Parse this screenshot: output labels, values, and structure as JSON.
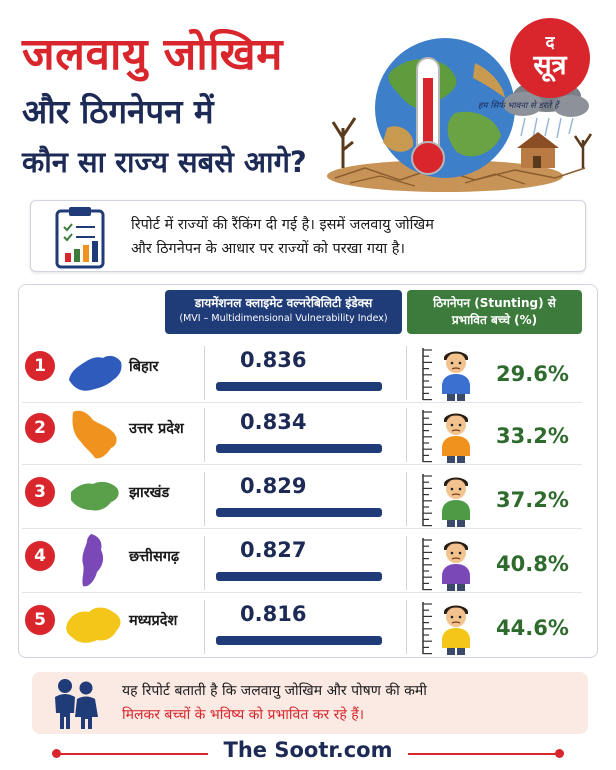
{
  "header": {
    "title_line1": "जलवायु जोखिम",
    "title_line2": "और ठिगनेपन में",
    "title_line3": "कौन सा राज्य सबसे आगे?",
    "logo_small": "द",
    "logo_big": "सूत्र",
    "tagline": "हम सिर्फ भावना से डरते हैं"
  },
  "intro": {
    "line1": "रिपोर्ट में राज्यों की रैंकिंग दी गई है। इसमें जलवायु जोखिम",
    "line2": "और ठिगनेपन के आधार पर राज्यों को परखा गया है।",
    "icon": "clipboard-chart-icon"
  },
  "columns": {
    "mvi_line1": "डायमेंशनल क्लाइमेट वल्नरेबिलिटी इंडेक्स",
    "mvi_line2": "(MVI – Multidimensional Vulnerability Index)",
    "stunting_line1": "ठिगनेपन (Stunting) से",
    "stunting_line2": "प्रभावित बच्चे (%)"
  },
  "states": [
    {
      "rank": "1",
      "name": "बिहार",
      "mvi": "0.836",
      "mvi_fraction": 1.0,
      "stunting": "29.6%",
      "map_color": "#2f5bbd",
      "shirt_color": "#3b6fd0"
    },
    {
      "rank": "2",
      "name": "उत्तर प्रदेश",
      "mvi": "0.834",
      "mvi_fraction": 1.0,
      "stunting": "33.2%",
      "map_color": "#f0931e",
      "shirt_color": "#f0931e"
    },
    {
      "rank": "3",
      "name": "झारखंड",
      "mvi": "0.829",
      "mvi_fraction": 1.0,
      "stunting": "37.2%",
      "map_color": "#5aa04b",
      "shirt_color": "#4f9a45"
    },
    {
      "rank": "4",
      "name": "छत्तीसगढ़",
      "mvi": "0.827",
      "mvi_fraction": 1.0,
      "stunting": "40.8%",
      "map_color": "#7b49b7",
      "shirt_color": "#7b49b7"
    },
    {
      "rank": "5",
      "name": "मध्यप्रदेश",
      "mvi": "0.816",
      "mvi_fraction": 1.0,
      "stunting": "44.6%",
      "map_color": "#f3c619",
      "shirt_color": "#f3c619"
    }
  ],
  "note": {
    "line1": "यह रिपोर्ट बताती है कि जलवायु जोखिम और पोषण की कमी",
    "line2": "मिलकर बच्चों के भविष्य को प्रभावित कर रहे हैं।",
    "icon": "children-icon"
  },
  "footer": {
    "site": "The Sootr.com"
  },
  "colors": {
    "accent_red": "#d8262c",
    "navy": "#1f3b78",
    "green": "#3d7b3c"
  }
}
